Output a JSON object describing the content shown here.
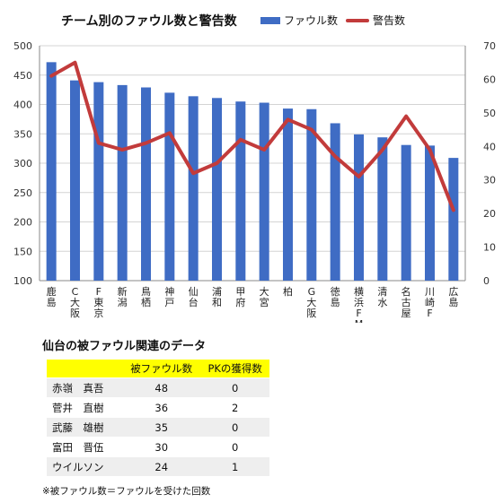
{
  "chart_data": {
    "type": "bar",
    "title": "チーム別のファウル数と警告数",
    "categories": [
      "鹿島",
      "C大阪",
      "F東京",
      "新潟",
      "鳥栖",
      "神戸",
      "仙台",
      "浦和",
      "甲府",
      "大宮",
      "柏",
      "G大阪",
      "徳島",
      "横浜FM",
      "清水",
      "名古屋",
      "川崎F",
      "広島"
    ],
    "series": [
      {
        "name": "ファウル数",
        "type": "bar",
        "axis": "left",
        "color": "#3f6cc4",
        "values": [
          472,
          441,
          438,
          433,
          429,
          420,
          414,
          411,
          405,
          403,
          393,
          392,
          368,
          349,
          344,
          331,
          330,
          309
        ]
      },
      {
        "name": "警告数",
        "type": "line",
        "axis": "right",
        "color": "#c23b3b",
        "values": [
          61,
          65,
          41,
          39,
          41,
          44,
          32,
          35,
          42,
          39,
          48,
          45,
          37,
          31,
          39,
          49,
          39,
          21
        ]
      }
    ],
    "ylim": [
      100,
      500
    ],
    "yticks": [
      100,
      150,
      200,
      250,
      300,
      350,
      400,
      450,
      500
    ],
    "y2lim": [
      0,
      70
    ],
    "y2ticks": [
      0,
      10,
      20,
      30,
      40,
      50,
      60,
      70
    ],
    "grid": true,
    "legend": "top-right"
  },
  "table": {
    "title": "仙台の被ファウル関連のデータ",
    "headers": [
      "",
      "被ファウル数",
      "PKの獲得数"
    ],
    "rows": [
      [
        "赤嶺　真吾",
        "48",
        "0"
      ],
      [
        "菅井　直樹",
        "36",
        "2"
      ],
      [
        "武藤　雄樹",
        "35",
        "0"
      ],
      [
        "富田　晋伍",
        "30",
        "0"
      ],
      [
        "ウイルソン",
        "24",
        "1"
      ]
    ]
  },
  "footnote": "※被ファウル数＝ファウルを受けた回数"
}
